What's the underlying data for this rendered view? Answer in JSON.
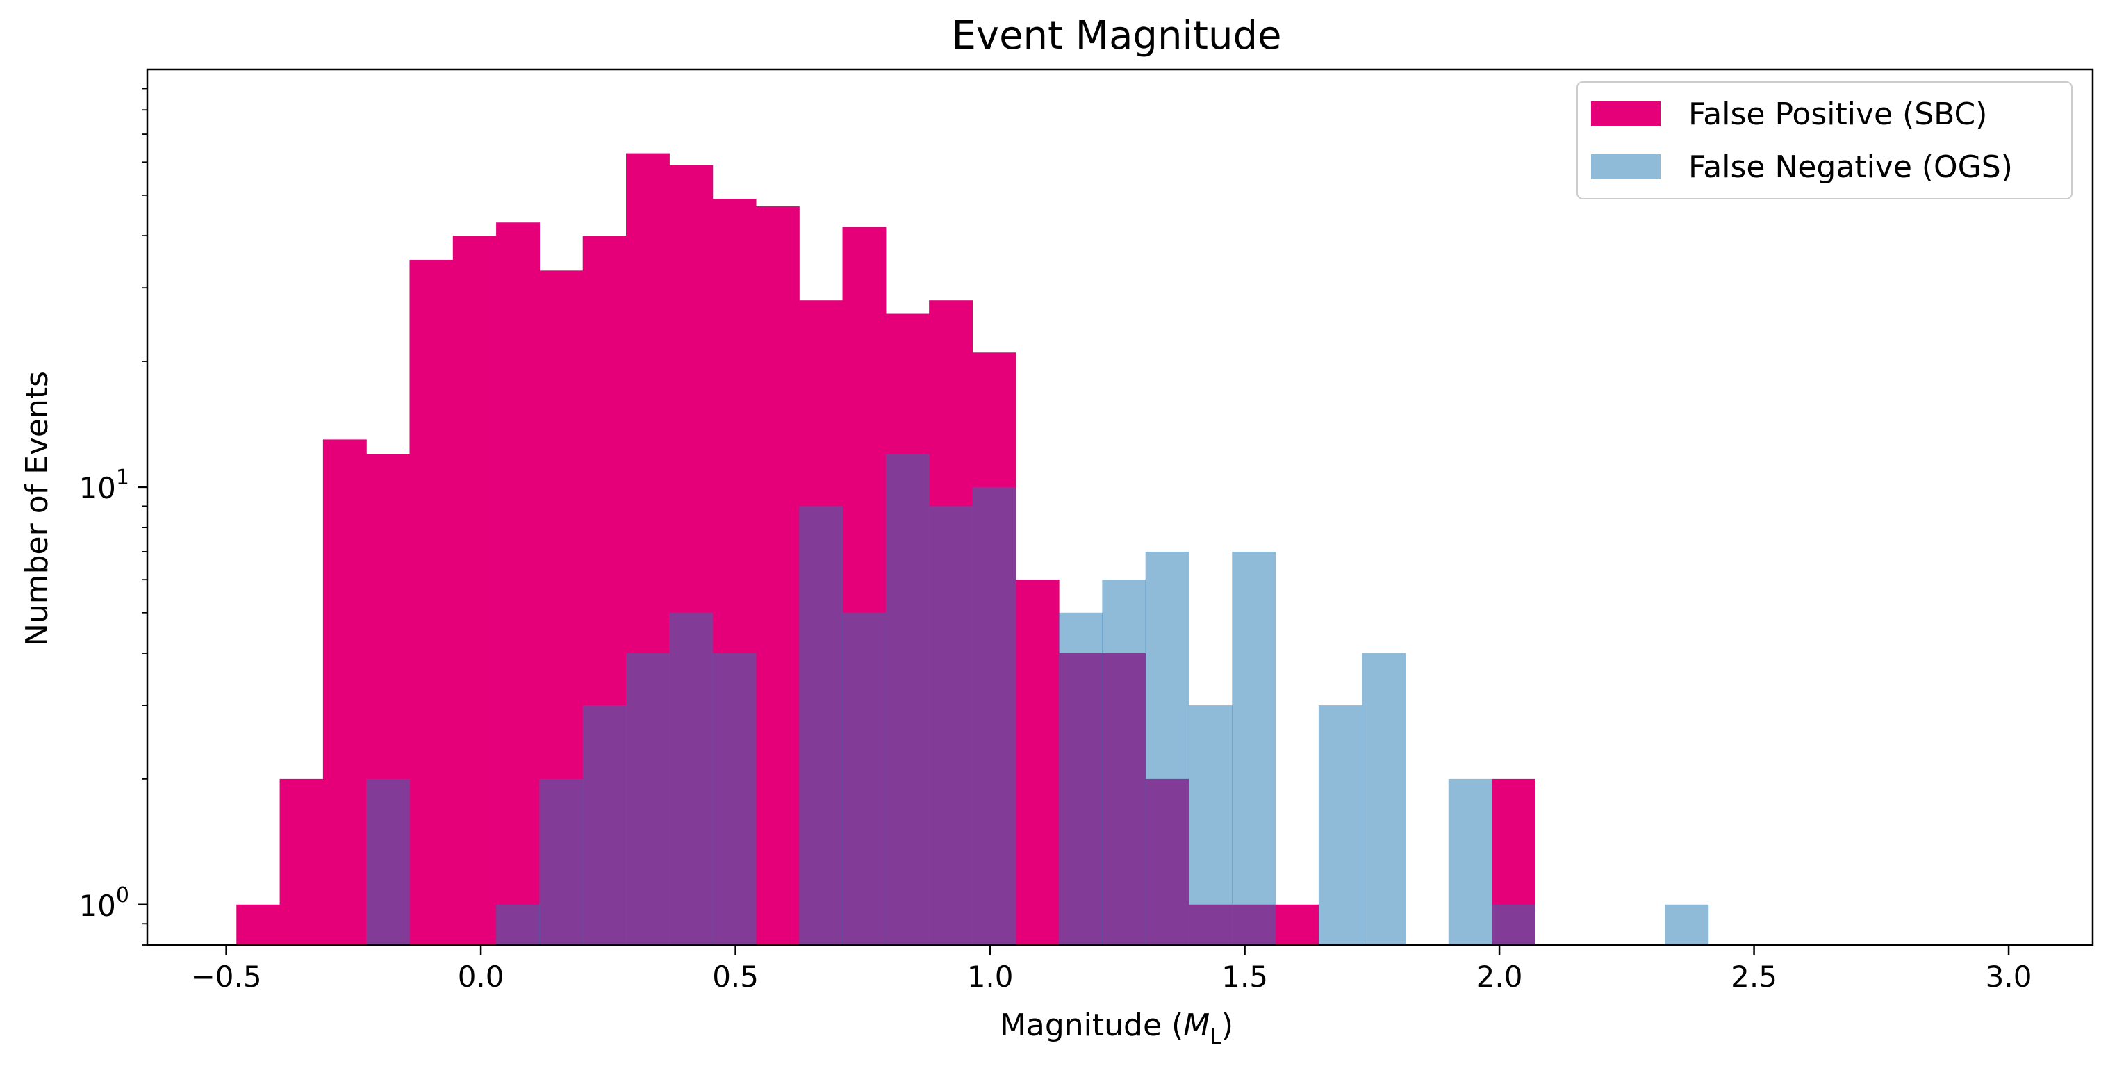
{
  "chart_data": {
    "type": "bar",
    "title": "Event Magnitude",
    "xlabel": "Magnitude (",
    "xlabel_math": "M",
    "xlabel_sub": "L",
    "xlabel_end": ")",
    "ylabel": "Number of Events",
    "yscale": "log",
    "xlim": [
      -0.655,
      3.165
    ],
    "ylim": [
      0.8,
      100
    ],
    "xticks": [
      {
        "value": -0.5,
        "label": "−0.5"
      },
      {
        "value": 0.0,
        "label": "0.0"
      },
      {
        "value": 0.5,
        "label": "0.5"
      },
      {
        "value": 1.0,
        "label": "1.0"
      },
      {
        "value": 1.5,
        "label": "1.5"
      },
      {
        "value": 2.0,
        "label": "2.0"
      },
      {
        "value": 2.5,
        "label": "2.5"
      },
      {
        "value": 3.0,
        "label": "3.0"
      }
    ],
    "yticks_major": [
      {
        "value": 1,
        "base": "10",
        "exp": "0"
      },
      {
        "value": 10,
        "base": "10",
        "exp": "1"
      }
    ],
    "legend_position": "top-right",
    "bin_start": -0.48,
    "bin_width": 0.085,
    "series": [
      {
        "name": "False Positive (SBC)",
        "color": "#e5007a",
        "alpha": 1.0,
        "counts": [
          1,
          2,
          13,
          12,
          35,
          40,
          43,
          33,
          40,
          63,
          59,
          49,
          47,
          28,
          42,
          26,
          28,
          21,
          6,
          4,
          4,
          2,
          1,
          1,
          1,
          0,
          0,
          0,
          0,
          2
        ]
      },
      {
        "name": "False Negative (OGS)",
        "color": "#1f77b4",
        "alpha": 0.5,
        "counts": [
          0,
          0,
          0,
          2,
          0,
          0,
          1,
          2,
          3,
          4,
          5,
          4,
          0,
          9,
          5,
          12,
          9,
          10,
          0,
          5,
          6,
          7,
          3,
          7,
          0,
          3,
          4,
          0,
          2,
          1,
          0,
          0,
          0,
          1
        ]
      }
    ]
  }
}
